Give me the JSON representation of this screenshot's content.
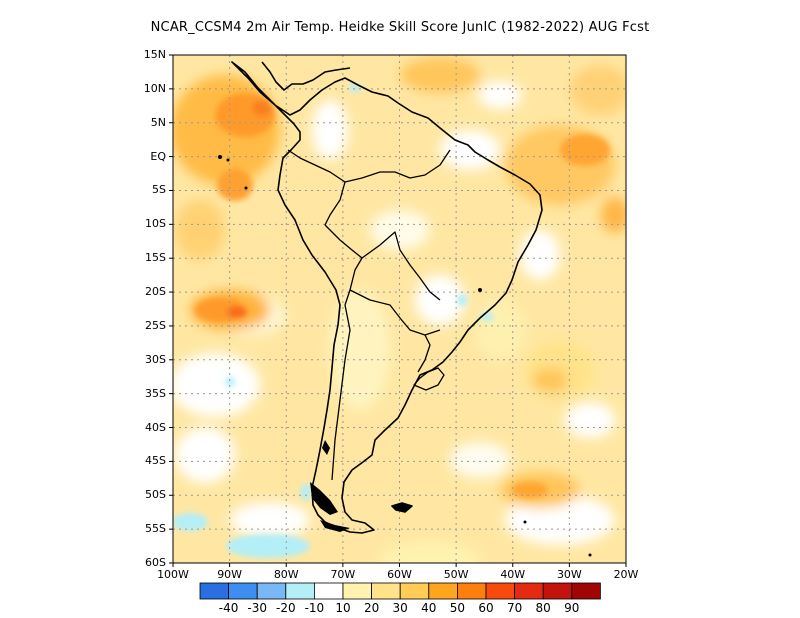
{
  "title": "NCAR_CCSM4  2m Air Temp. Heidke Skill Score JunIC (1982-2022) AUG Fcst",
  "lat_ticks": [
    "15N",
    "10N",
    "5N",
    "EQ",
    "5S",
    "10S",
    "15S",
    "20S",
    "25S",
    "30S",
    "35S",
    "40S",
    "45S",
    "50S",
    "55S",
    "60S"
  ],
  "lon_ticks": [
    "100W",
    "90W",
    "80W",
    "70W",
    "60W",
    "50W",
    "40W",
    "30W",
    "20W"
  ],
  "map_extent": {
    "lon": [
      -100,
      -20
    ],
    "lat": [
      -60,
      15
    ]
  },
  "legend": {
    "labels": [
      "-40",
      "-30",
      "-20",
      "-10",
      "10",
      "20",
      "30",
      "40",
      "50",
      "60",
      "70",
      "80",
      "90"
    ],
    "colors": [
      "#2a6fe0",
      "#3d8ef0",
      "#7ab8f5",
      "#b4eef7",
      "#ffffff",
      "#fff3b0",
      "#ffe38a",
      "#ffcc55",
      "#ffa61e",
      "#fe7e0e",
      "#f84a0c",
      "#e42a10",
      "#c4120c",
      "#a00505"
    ]
  },
  "colors": {
    "ocean_base": "#ffe7a3",
    "land_base": "#fff2bc",
    "coast": "#000000",
    "grid": "#999999"
  }
}
